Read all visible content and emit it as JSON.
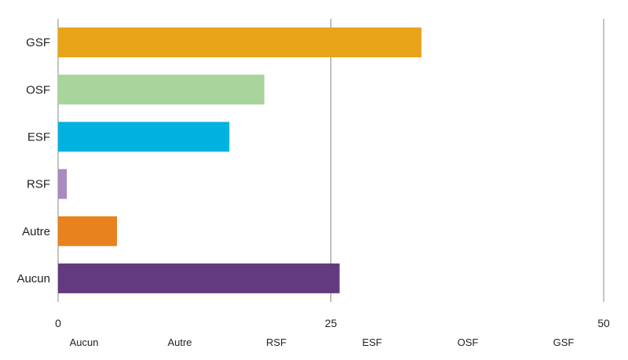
{
  "chart_data": {
    "type": "bar",
    "orientation": "horizontal",
    "categories": [
      "GSF",
      "OSF",
      "ESF",
      "RSF",
      "Autre",
      "Aucun"
    ],
    "values": [
      33.3,
      18.9,
      15.7,
      0.8,
      5.4,
      25.8
    ],
    "colors": [
      "#e8a318",
      "#a9d49b",
      "#00b2df",
      "#a98bbf",
      "#e8821e",
      "#633a80"
    ],
    "xlim": [
      0,
      50
    ],
    "xticks": [
      0,
      25,
      50
    ],
    "grid": true,
    "legend": {
      "placement": "bottom",
      "entries": [
        "Aucun",
        "Autre",
        "RSF",
        "ESF",
        "OSF",
        "GSF"
      ]
    }
  }
}
